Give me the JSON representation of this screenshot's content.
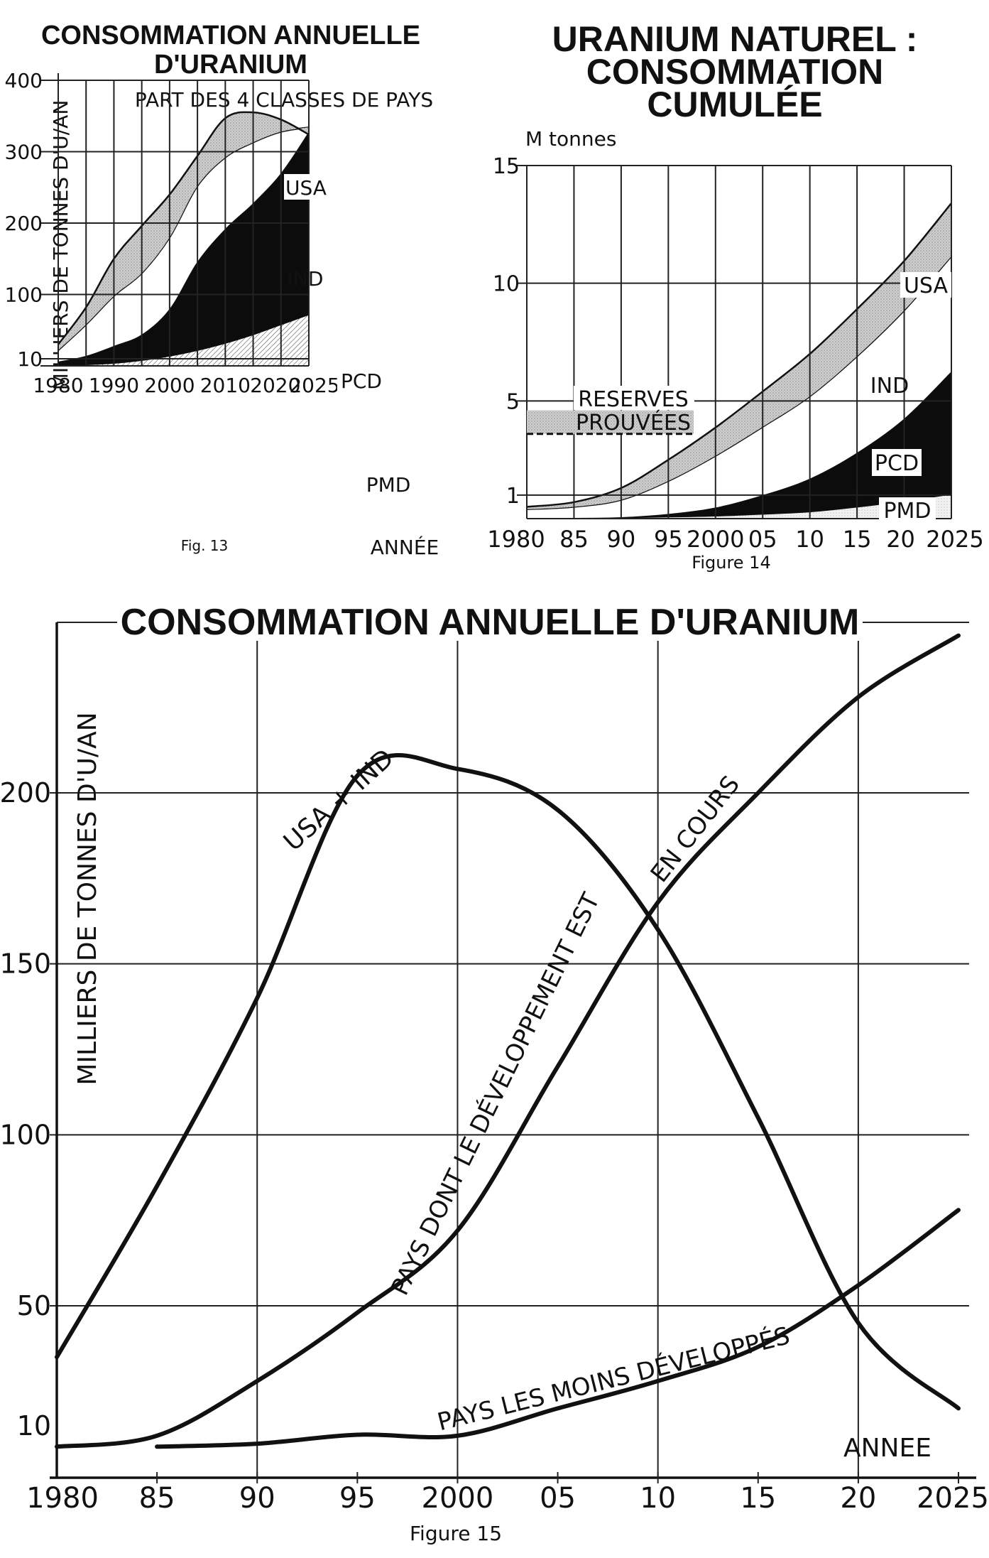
{
  "fig13": {
    "title_line1": "CONSOMMATION ANNUELLE",
    "title_line2": "D'URANIUM",
    "subtitle": "PART DES 4 CLASSES DE PAYS",
    "ylabel": "MILLIERS DE TONNES D'U/AN",
    "xlabel": "ANNÉE",
    "caption": "Fig. 13",
    "y_ticks": [
      "400",
      "300",
      "200",
      "100",
      "10"
    ],
    "x_ticks": [
      "1980",
      "1990",
      "2000",
      "2010",
      "2020",
      "2025"
    ],
    "chart_data": {
      "type": "area",
      "stacked": true,
      "x": [
        1980,
        1985,
        1990,
        1995,
        2000,
        2005,
        2010,
        2015,
        2020,
        2025
      ],
      "ylim": [
        0,
        400
      ],
      "series": [
        {
          "name": "PMD",
          "values": [
            1,
            2,
            4,
            8,
            14,
            22,
            32,
            44,
            58,
            72
          ]
        },
        {
          "name": "PCD",
          "values": [
            5,
            12,
            24,
            36,
            66,
            124,
            160,
            184,
            212,
            256
          ]
        },
        {
          "name": "IND",
          "values": [
            16,
            44,
            70,
            86,
            100,
            106,
            100,
            85,
            58,
            6
          ]
        },
        {
          "name": "USA",
          "values": [
            8,
            24,
            52,
            66,
            60,
            42,
            55,
            42,
            17,
            -10
          ]
        }
      ]
    }
  },
  "fig14": {
    "title_line1": "URANIUM NATUREL :",
    "title_line2": "CONSOMMATION",
    "title_line3": "CUMULÉE",
    "yunit": "M  tonnes",
    "caption": "Figure 14",
    "reserves_line1": "RESERVES",
    "reserves_line2": "PROUVÉES",
    "y_ticks": [
      "15",
      "10",
      "5",
      "1"
    ],
    "x_ticks": [
      "1980",
      "85",
      "90",
      "95",
      "2000",
      "05",
      "10",
      "15",
      "20",
      "2025"
    ],
    "chart_data": {
      "type": "area",
      "stacked": true,
      "x": [
        1980,
        1985,
        1990,
        1995,
        2000,
        2005,
        2010,
        2015,
        2020,
        2025
      ],
      "ylim": [
        0,
        15
      ],
      "reserves_prouvees": [
        3.6,
        4.6
      ],
      "series": [
        {
          "name": "PMD",
          "values": [
            0.02,
            0.03,
            0.05,
            0.08,
            0.12,
            0.2,
            0.3,
            0.5,
            0.75,
            1.05
          ]
        },
        {
          "name": "PCD",
          "values": [
            0.0,
            0.0,
            0.01,
            0.12,
            0.35,
            0.8,
            1.4,
            2.3,
            3.5,
            5.2
          ]
        },
        {
          "name": "IND",
          "values": [
            0.38,
            0.47,
            0.74,
            1.4,
            2.2,
            2.9,
            3.5,
            4.1,
            4.6,
            4.9
          ]
        },
        {
          "name": "USA",
          "values": [
            0.1,
            0.2,
            0.5,
            0.9,
            1.2,
            1.5,
            1.8,
            2.0,
            2.1,
            2.25
          ]
        }
      ]
    }
  },
  "fig15": {
    "title": "CONSOMMATION ANNUELLE D'URANIUM",
    "ylabel": "MILLIERS DE TONNES D'U/AN",
    "xlabel": "ANNEE",
    "caption": "Figure 15",
    "label_usa_ind": "USA + IND",
    "label_pcd_part1": "PAYS DONT LE DÉVELOPPEMENT EST",
    "label_pcd_part2": "EN COURS",
    "label_pmd": "PAYS LES MOINS DÉVELOPPÉS",
    "y_ticks": [
      "200",
      "150",
      "100",
      "50",
      "10"
    ],
    "x_ticks": [
      "1980",
      "85",
      "90",
      "95",
      "2000",
      "05",
      "10",
      "15",
      "20",
      "2025"
    ],
    "chart_data": {
      "type": "line",
      "ylim": [
        0,
        250
      ],
      "xlim": [
        1980,
        2025
      ],
      "series": [
        {
          "name": "USA + IND",
          "x": [
            1980,
            1985,
            1990,
            1995,
            2000,
            2005,
            2010,
            2015,
            2020,
            2025
          ],
          "values": [
            35,
            85,
            140,
            205,
            207,
            195,
            160,
            105,
            45,
            20
          ]
        },
        {
          "name": "PAYS DONT LE DÉVELOPPEMENT EST EN COURS",
          "x": [
            1980,
            1985,
            1990,
            1995,
            2000,
            2005,
            2010,
            2015,
            2020,
            2025
          ],
          "values": [
            3,
            12,
            28,
            48,
            72,
            120,
            168,
            200,
            228,
            246
          ]
        },
        {
          "name": "PAYS LES MOINS DÉVELOPPÉS",
          "x": [
            1985,
            1990,
            1995,
            2000,
            2005,
            2010,
            2015,
            2020,
            2025
          ],
          "values": [
            3,
            4,
            7,
            12,
            20,
            28,
            38,
            56,
            78
          ]
        }
      ]
    }
  }
}
